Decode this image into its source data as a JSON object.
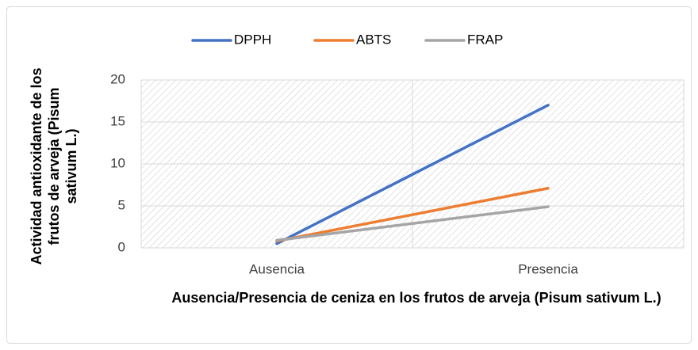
{
  "chart_data": {
    "type": "line",
    "x_label": "Ausencia/Presencia de ceniza en los frutos de arveja (Pisum sativum L.)",
    "y_label": "Actividad antioxidante de los frutos de arveja (Pisum sativum L.)",
    "categories": [
      "Ausencia",
      "Presencia"
    ],
    "series": [
      {
        "name": "DPPH",
        "color": "#4472c4",
        "values": [
          0.5,
          17
        ]
      },
      {
        "name": "ABTS",
        "color": "#ed7d31",
        "values": [
          0.8,
          7.1
        ]
      },
      {
        "name": "FRAP",
        "color": "#a5a5a5",
        "values": [
          0.9,
          4.9
        ]
      }
    ],
    "ylim": [
      0,
      20
    ],
    "yticks": [
      0,
      5,
      10,
      15,
      20
    ],
    "grid": true,
    "legend": "top"
  }
}
